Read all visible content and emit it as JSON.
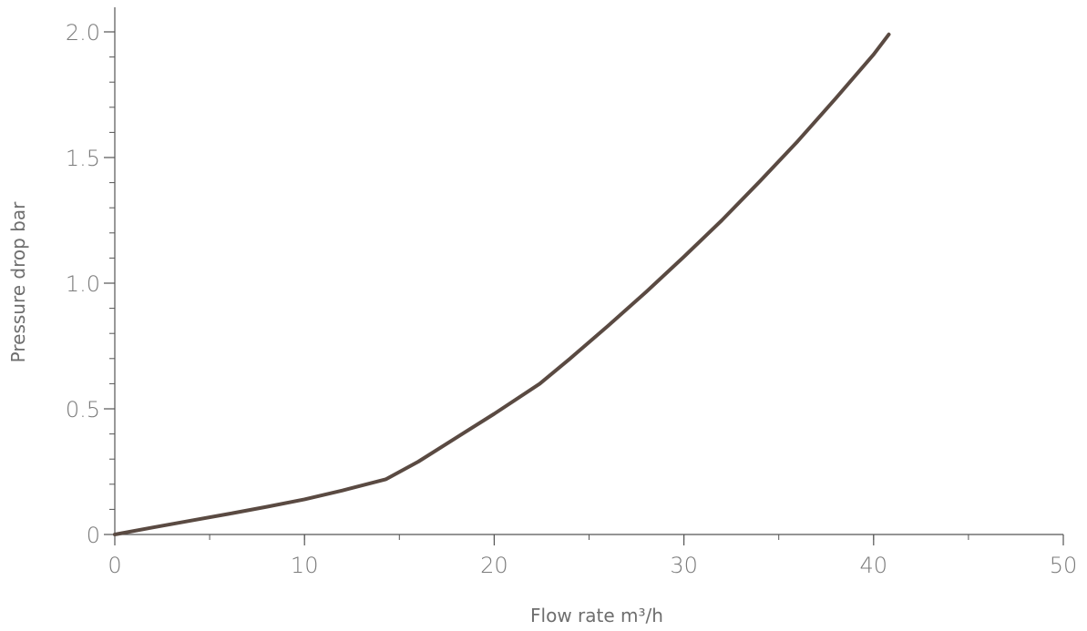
{
  "chart_data": {
    "type": "line",
    "title": "",
    "xlabel": "Flow rate m³/h",
    "ylabel": "Pressure drop bar",
    "xlim": [
      0,
      50
    ],
    "ylim": [
      0,
      2.0
    ],
    "x_ticks": [
      0,
      10,
      20,
      30,
      40,
      50
    ],
    "x_tick_labels": [
      "0",
      "10",
      "20",
      "30",
      "40",
      "50"
    ],
    "y_ticks": [
      0,
      0.5,
      1.0,
      1.5,
      2.0
    ],
    "y_tick_labels": [
      "0",
      "0.5",
      "1.0",
      "1.5",
      "2.0"
    ],
    "y_minor_step": 0.1,
    "x_minor_step": 5,
    "grid": false,
    "line_color": "#5a4a42",
    "series": [
      {
        "x": [
          0,
          2,
          4,
          6,
          8,
          10,
          12,
          14.3,
          16,
          18,
          20,
          22.4,
          24,
          26,
          28,
          30,
          32,
          34,
          36,
          38,
          40,
          40.8
        ],
        "y": [
          0.0,
          0.028,
          0.055,
          0.082,
          0.11,
          0.14,
          0.175,
          0.22,
          0.29,
          0.385,
          0.48,
          0.6,
          0.7,
          0.83,
          0.965,
          1.105,
          1.25,
          1.405,
          1.565,
          1.735,
          1.91,
          1.99
        ]
      }
    ]
  }
}
